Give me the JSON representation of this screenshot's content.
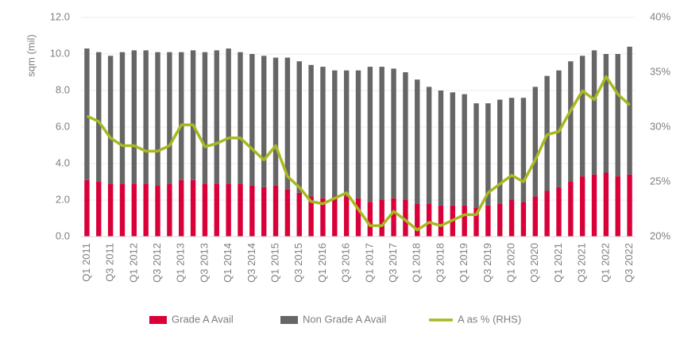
{
  "chart_data": {
    "type": "bar",
    "stacked": true,
    "y_label": "sqm (mil)",
    "categories": [
      "Q1 2011",
      null,
      "Q3 2011",
      null,
      "Q1 2012",
      null,
      "Q3 2012",
      null,
      "Q1 2013",
      null,
      "Q3 2013",
      null,
      "Q1 2014",
      null,
      "Q3 2014",
      null,
      "Q1 2015",
      null,
      "Q3 2015",
      null,
      "Q1 2016",
      null,
      "Q3 2016",
      null,
      "Q1 2017",
      null,
      "Q3 2017",
      null,
      "Q1 2018",
      null,
      "Q3 2018",
      null,
      "Q1 2019",
      null,
      "Q3 2019",
      null,
      "Q1 2020",
      null,
      "Q3 2020",
      null,
      "Q1 2021",
      null,
      "Q3 2021",
      null,
      "Q1 2022",
      null,
      "Q3 2022"
    ],
    "series": [
      {
        "name": "Grade A Avail",
        "color": "#d9003a",
        "type": "bar",
        "values": [
          3.1,
          3.0,
          2.9,
          2.9,
          2.9,
          2.9,
          2.8,
          2.9,
          3.1,
          3.1,
          2.9,
          2.9,
          2.9,
          2.9,
          2.8,
          2.7,
          2.8,
          2.6,
          2.4,
          2.2,
          2.1,
          2.1,
          2.2,
          2.1,
          1.9,
          2.0,
          2.1,
          2.0,
          1.8,
          1.8,
          1.7,
          1.7,
          1.7,
          1.6,
          1.7,
          1.8,
          2.0,
          1.9,
          2.2,
          2.5,
          2.7,
          3.0,
          3.3,
          3.4,
          3.5,
          3.3,
          3.4
        ]
      },
      {
        "name": "Non Grade A Avail",
        "color": "#666666",
        "type": "bar",
        "values": [
          7.2,
          7.1,
          7.0,
          7.2,
          7.3,
          7.3,
          7.3,
          7.2,
          7.0,
          7.1,
          7.2,
          7.3,
          7.4,
          7.2,
          7.2,
          7.2,
          7.0,
          7.2,
          7.2,
          7.2,
          7.2,
          7.0,
          6.9,
          7.0,
          7.4,
          7.3,
          7.1,
          7.0,
          6.8,
          6.4,
          6.3,
          6.2,
          6.1,
          5.7,
          5.6,
          5.7,
          5.6,
          5.7,
          6.0,
          6.3,
          6.4,
          6.6,
          6.6,
          6.8,
          6.5,
          6.7,
          7.0
        ]
      },
      {
        "name": "A as % (RHS)",
        "color": "#a8b820",
        "type": "line",
        "axis": "y2",
        "values": [
          31,
          30.5,
          29,
          28.3,
          28.3,
          27.8,
          27.8,
          28.3,
          30.2,
          30.2,
          28.2,
          28.5,
          29,
          29,
          28,
          27,
          28.3,
          25.5,
          24.5,
          23.2,
          23,
          23.5,
          24,
          22.5,
          21,
          21,
          22.3,
          21.5,
          20.6,
          21.3,
          21,
          21.5,
          22,
          22,
          24,
          24.8,
          25.6,
          25,
          27,
          29.3,
          29.6,
          31.5,
          33.3,
          32.5,
          34.6,
          33,
          32
        ]
      }
    ],
    "ylim": [
      0,
      12
    ],
    "yticks": [
      {
        "value": 0,
        "label": "0.0"
      },
      {
        "value": 2,
        "label": "2.0"
      },
      {
        "value": 4,
        "label": "4.0"
      },
      {
        "value": 6,
        "label": "6.0"
      },
      {
        "value": 8,
        "label": "8.0"
      },
      {
        "value": 10,
        "label": "10.0"
      },
      {
        "value": 12,
        "label": "12.0"
      }
    ],
    "y2lim": [
      20,
      40
    ],
    "y2ticks": [
      {
        "value": 20,
        "label": "20%"
      },
      {
        "value": 25,
        "label": "25%"
      },
      {
        "value": 30,
        "label": "30%"
      },
      {
        "value": 35,
        "label": "35%"
      },
      {
        "value": 40,
        "label": "40%"
      }
    ],
    "grid": true,
    "legend": "bottom"
  }
}
